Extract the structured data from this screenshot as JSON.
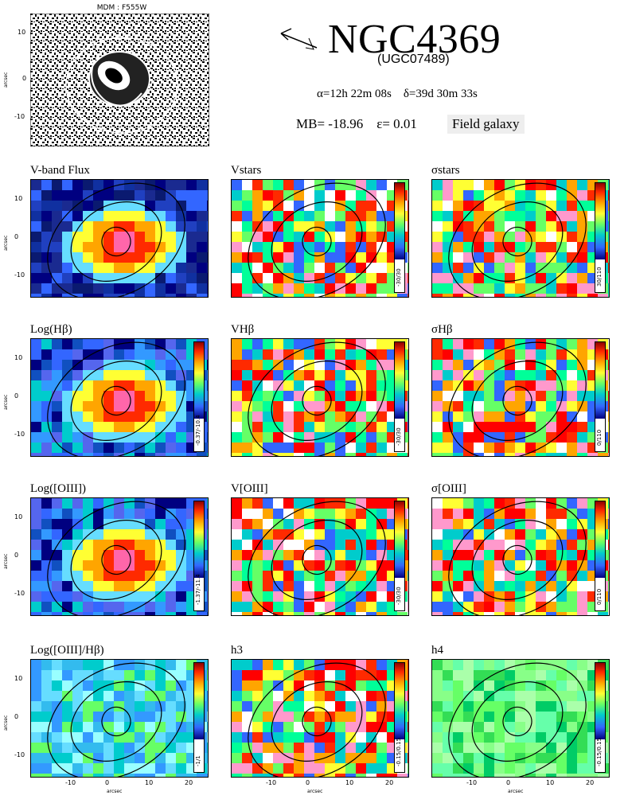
{
  "header": {
    "image_title": "MDM : F555W",
    "name": "NGC4369",
    "alt_name": "(UGC07489)",
    "coords": "α=12h 22m 08s    δ=39d 30m 33s",
    "stats": "MB= -18.96    ε= 0.01",
    "env": "Field galaxy"
  },
  "axes": {
    "x_ticks": [
      "-10",
      "0",
      "10",
      "20"
    ],
    "y_ticks": [
      "10",
      "0",
      "-10"
    ],
    "x_label": "arcsec",
    "y_label": "arcsec"
  },
  "panels": [
    {
      "title": "V-band Flux",
      "range": "",
      "scheme": "flux"
    },
    {
      "title": "Vstars",
      "range": "-30/30",
      "scheme": "vel"
    },
    {
      "title": "σstars",
      "range": "30/110",
      "scheme": "vel"
    },
    {
      "title": "Log(Hβ)",
      "range": "-0.37/-10.4",
      "scheme": "flux2"
    },
    {
      "title": "VHβ",
      "range": "-30/30",
      "scheme": "vel"
    },
    {
      "title": "σHβ",
      "range": "0/110",
      "scheme": "vel"
    },
    {
      "title": "Log([OIII])",
      "range": "-1.37/-11.4",
      "scheme": "flux2"
    },
    {
      "title": "V[OIII]",
      "range": "-30/30",
      "scheme": "vel"
    },
    {
      "title": "σ[OIII]",
      "range": "0/110",
      "scheme": "vel"
    },
    {
      "title": "Log([OIII]/Hβ)",
      "range": "-1/1",
      "scheme": "ratio"
    },
    {
      "title": "h3",
      "range": "-0.15/0.15",
      "scheme": "vel"
    },
    {
      "title": "h4",
      "range": "-0.15/0.15",
      "scheme": "green"
    }
  ],
  "colors": {
    "dark_red": "#8b0000",
    "red": "#ff2a00",
    "orange": "#ffa500",
    "yellow": "#ffff33",
    "green": "#66ff66",
    "cyan": "#00cccc",
    "blue": "#3366ff",
    "navy": "#000080"
  }
}
